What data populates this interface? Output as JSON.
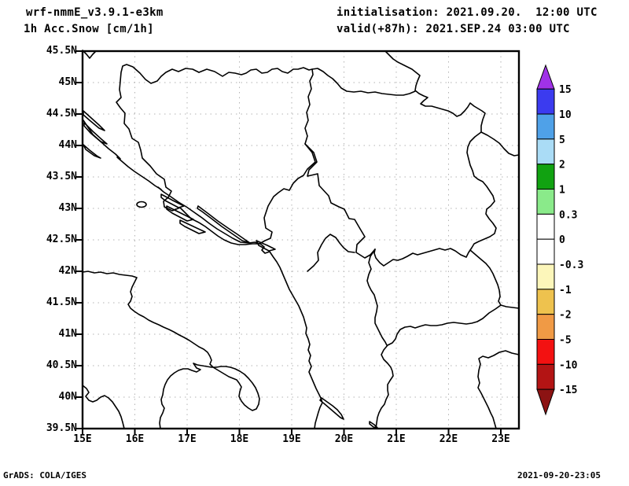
{
  "header": {
    "model": "wrf-nmmE_v3.9.1-e3km",
    "variable": "1h Acc.Snow [cm/1h]",
    "init_label": "initialisation: 2021.09.20.  12:00 UTC",
    "valid_label": "valid(+87h): 2021.SEP.24 03:00 UTC"
  },
  "footer": {
    "grads_credit": "GrADS: COLA/IGES",
    "timestamp": "2021-09-20-23:05"
  },
  "axes": {
    "y_ticks": [
      "45.5N",
      "45N",
      "44.5N",
      "44N",
      "43.5N",
      "43N",
      "42.5N",
      "42N",
      "41.5N",
      "41N",
      "40.5N",
      "40N",
      "39.5N"
    ],
    "x_ticks": [
      "15E",
      "16E",
      "17E",
      "18E",
      "19E",
      "20E",
      "21E",
      "22E",
      "23E"
    ]
  },
  "colorbar": {
    "tick_labels": [
      "15",
      "10",
      "5",
      "2",
      "1",
      "0.3",
      "0",
      "-0.3",
      "-1",
      "-2",
      "-5",
      "-10",
      "-15"
    ],
    "segment_colors": [
      "#3b3bef",
      "#4fa1e8",
      "#aadcf6",
      "#11a211",
      "#8aea8a",
      "#ffffff",
      "#ffffff",
      "#fcf6ba",
      "#eec24e",
      "#f09a45",
      "#f31111",
      "#b31414"
    ],
    "arrow_top_color": "#a032e8",
    "arrow_bottom_color": "#8c1313"
  },
  "chart_data": {
    "type": "heatmap",
    "title": "1h Acc.Snow [cm/1h]",
    "subtitle": "wrf-nmmE_v3.9.1-e3km",
    "x_axis_ticks": [
      "15E",
      "16E",
      "17E",
      "18E",
      "19E",
      "20E",
      "21E",
      "22E",
      "23E"
    ],
    "y_axis_ticks": [
      "39.5N",
      "40N",
      "40.5N",
      "41N",
      "41.5N",
      "42N",
      "42.5N",
      "43N",
      "43.5N",
      "44N",
      "44.5N",
      "45N",
      "45.5N"
    ],
    "colorbar_levels": [
      -15,
      -10,
      -5,
      -2,
      -1,
      -0.3,
      0,
      0.3,
      1,
      2,
      5,
      10,
      15
    ],
    "field_rendered": "no shaded snow values visible inside map area (all zero/white)",
    "grid": true,
    "legend_position": "right"
  }
}
